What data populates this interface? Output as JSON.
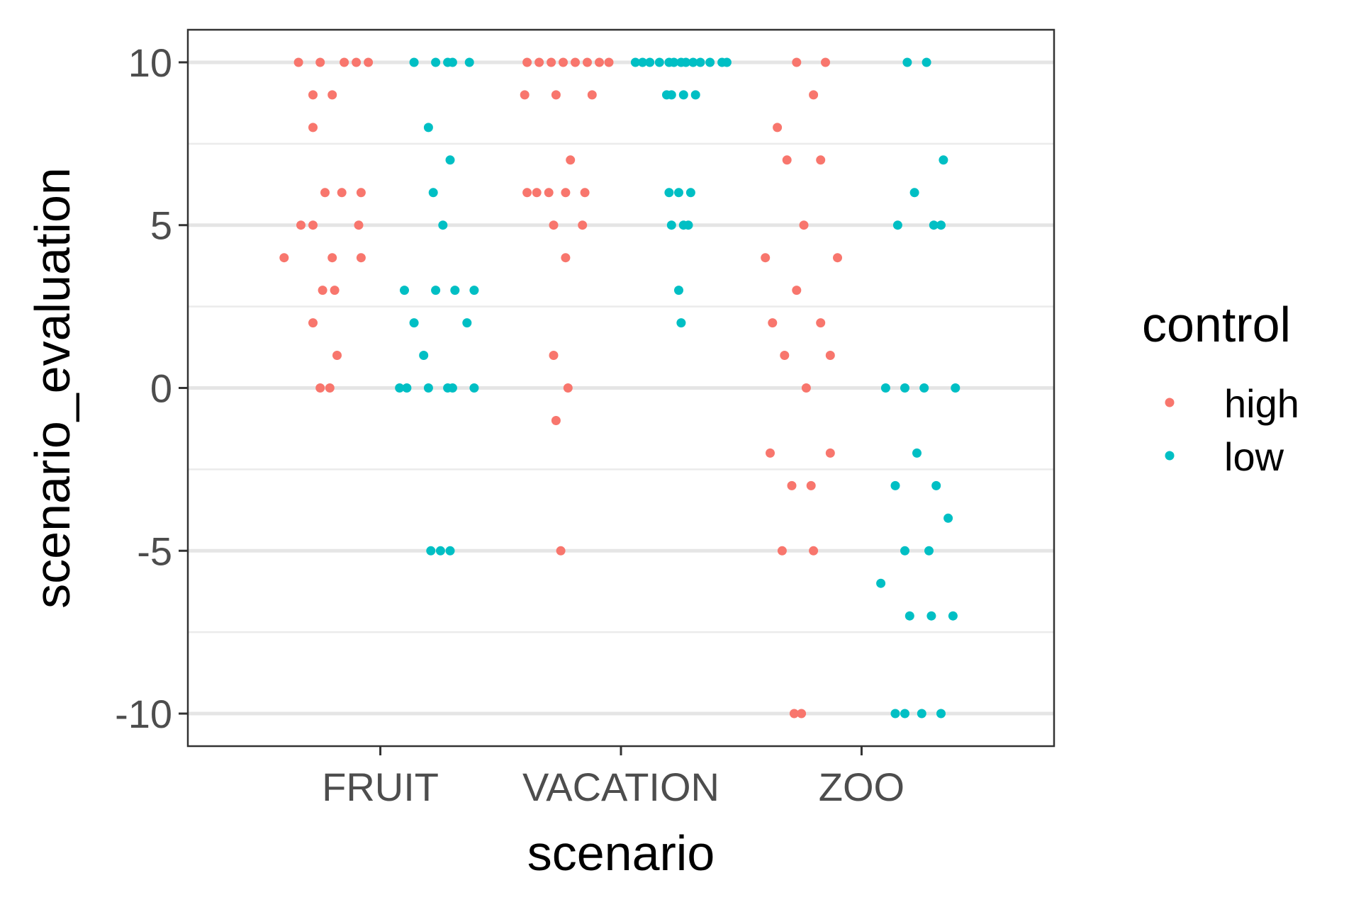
{
  "chart_data": {
    "type": "scatter",
    "xlabel": "scenario",
    "ylabel": "scenario_evaluation",
    "categories": [
      "FRUIT",
      "VACATION",
      "ZOO"
    ],
    "ylim": [
      -11,
      11
    ],
    "y_ticks": [
      "-10",
      "-5",
      "0",
      "5",
      "10"
    ],
    "y_tick_values": [
      -10,
      -5,
      0,
      5,
      10
    ],
    "grid": true,
    "legend": {
      "title": "control",
      "position": "right",
      "entries": [
        {
          "label": "high",
          "color": "#F8766D"
        },
        {
          "label": "low",
          "color": "#00BFC4"
        }
      ]
    },
    "series": [
      {
        "name": "high",
        "color": "#F8766D",
        "points": [
          {
            "x": "FRUIT",
            "jitter": -0.34,
            "y": 10
          },
          {
            "x": "FRUIT",
            "jitter": -0.25,
            "y": 10
          },
          {
            "x": "FRUIT",
            "jitter": -0.15,
            "y": 10
          },
          {
            "x": "FRUIT",
            "jitter": -0.1,
            "y": 10
          },
          {
            "x": "FRUIT",
            "jitter": -0.05,
            "y": 10
          },
          {
            "x": "FRUIT",
            "jitter": -0.28,
            "y": 9
          },
          {
            "x": "FRUIT",
            "jitter": -0.2,
            "y": 9
          },
          {
            "x": "FRUIT",
            "jitter": -0.28,
            "y": 8
          },
          {
            "x": "FRUIT",
            "jitter": -0.23,
            "y": 6
          },
          {
            "x": "FRUIT",
            "jitter": -0.16,
            "y": 6
          },
          {
            "x": "FRUIT",
            "jitter": -0.08,
            "y": 6
          },
          {
            "x": "FRUIT",
            "jitter": -0.33,
            "y": 5
          },
          {
            "x": "FRUIT",
            "jitter": -0.28,
            "y": 5
          },
          {
            "x": "FRUIT",
            "jitter": -0.09,
            "y": 5
          },
          {
            "x": "FRUIT",
            "jitter": -0.4,
            "y": 4
          },
          {
            "x": "FRUIT",
            "jitter": -0.2,
            "y": 4
          },
          {
            "x": "FRUIT",
            "jitter": -0.08,
            "y": 4
          },
          {
            "x": "FRUIT",
            "jitter": -0.24,
            "y": 3
          },
          {
            "x": "FRUIT",
            "jitter": -0.19,
            "y": 3
          },
          {
            "x": "FRUIT",
            "jitter": -0.28,
            "y": 2
          },
          {
            "x": "FRUIT",
            "jitter": -0.18,
            "y": 1
          },
          {
            "x": "FRUIT",
            "jitter": -0.25,
            "y": 0
          },
          {
            "x": "FRUIT",
            "jitter": -0.21,
            "y": 0
          },
          {
            "x": "VACATION",
            "jitter": -0.39,
            "y": 10
          },
          {
            "x": "VACATION",
            "jitter": -0.34,
            "y": 10
          },
          {
            "x": "VACATION",
            "jitter": -0.29,
            "y": 10
          },
          {
            "x": "VACATION",
            "jitter": -0.24,
            "y": 10
          },
          {
            "x": "VACATION",
            "jitter": -0.19,
            "y": 10
          },
          {
            "x": "VACATION",
            "jitter": -0.14,
            "y": 10
          },
          {
            "x": "VACATION",
            "jitter": -0.09,
            "y": 10
          },
          {
            "x": "VACATION",
            "jitter": -0.05,
            "y": 10
          },
          {
            "x": "VACATION",
            "jitter": -0.4,
            "y": 9
          },
          {
            "x": "VACATION",
            "jitter": -0.27,
            "y": 9
          },
          {
            "x": "VACATION",
            "jitter": -0.12,
            "y": 9
          },
          {
            "x": "VACATION",
            "jitter": -0.21,
            "y": 7
          },
          {
            "x": "VACATION",
            "jitter": -0.39,
            "y": 6
          },
          {
            "x": "VACATION",
            "jitter": -0.35,
            "y": 6
          },
          {
            "x": "VACATION",
            "jitter": -0.3,
            "y": 6
          },
          {
            "x": "VACATION",
            "jitter": -0.23,
            "y": 6
          },
          {
            "x": "VACATION",
            "jitter": -0.15,
            "y": 6
          },
          {
            "x": "VACATION",
            "jitter": -0.28,
            "y": 5
          },
          {
            "x": "VACATION",
            "jitter": -0.16,
            "y": 5
          },
          {
            "x": "VACATION",
            "jitter": -0.23,
            "y": 4
          },
          {
            "x": "VACATION",
            "jitter": -0.28,
            "y": 1
          },
          {
            "x": "VACATION",
            "jitter": -0.22,
            "y": 0
          },
          {
            "x": "VACATION",
            "jitter": -0.27,
            "y": -1
          },
          {
            "x": "VACATION",
            "jitter": -0.25,
            "y": -5
          },
          {
            "x": "ZOO",
            "jitter": -0.27,
            "y": 10
          },
          {
            "x": "ZOO",
            "jitter": -0.15,
            "y": 10
          },
          {
            "x": "ZOO",
            "jitter": -0.2,
            "y": 9
          },
          {
            "x": "ZOO",
            "jitter": -0.35,
            "y": 8
          },
          {
            "x": "ZOO",
            "jitter": -0.31,
            "y": 7
          },
          {
            "x": "ZOO",
            "jitter": -0.17,
            "y": 7
          },
          {
            "x": "ZOO",
            "jitter": -0.24,
            "y": 5
          },
          {
            "x": "ZOO",
            "jitter": -0.4,
            "y": 4
          },
          {
            "x": "ZOO",
            "jitter": -0.1,
            "y": 4
          },
          {
            "x": "ZOO",
            "jitter": -0.27,
            "y": 3
          },
          {
            "x": "ZOO",
            "jitter": -0.37,
            "y": 2
          },
          {
            "x": "ZOO",
            "jitter": -0.17,
            "y": 2
          },
          {
            "x": "ZOO",
            "jitter": -0.32,
            "y": 1
          },
          {
            "x": "ZOO",
            "jitter": -0.13,
            "y": 1
          },
          {
            "x": "ZOO",
            "jitter": -0.23,
            "y": 0
          },
          {
            "x": "ZOO",
            "jitter": -0.38,
            "y": -2
          },
          {
            "x": "ZOO",
            "jitter": -0.13,
            "y": -2
          },
          {
            "x": "ZOO",
            "jitter": -0.29,
            "y": -3
          },
          {
            "x": "ZOO",
            "jitter": -0.21,
            "y": -3
          },
          {
            "x": "ZOO",
            "jitter": -0.33,
            "y": -5
          },
          {
            "x": "ZOO",
            "jitter": -0.2,
            "y": -5
          },
          {
            "x": "ZOO",
            "jitter": -0.28,
            "y": -10
          },
          {
            "x": "ZOO",
            "jitter": -0.25,
            "y": -10
          }
        ]
      },
      {
        "name": "low",
        "color": "#00BFC4",
        "points": [
          {
            "x": "FRUIT",
            "jitter": 0.14,
            "y": 10
          },
          {
            "x": "FRUIT",
            "jitter": 0.23,
            "y": 10
          },
          {
            "x": "FRUIT",
            "jitter": 0.28,
            "y": 10
          },
          {
            "x": "FRUIT",
            "jitter": 0.3,
            "y": 10
          },
          {
            "x": "FRUIT",
            "jitter": 0.37,
            "y": 10
          },
          {
            "x": "FRUIT",
            "jitter": 0.2,
            "y": 8
          },
          {
            "x": "FRUIT",
            "jitter": 0.29,
            "y": 7
          },
          {
            "x": "FRUIT",
            "jitter": 0.22,
            "y": 6
          },
          {
            "x": "FRUIT",
            "jitter": 0.26,
            "y": 5
          },
          {
            "x": "FRUIT",
            "jitter": 0.1,
            "y": 3
          },
          {
            "x": "FRUIT",
            "jitter": 0.23,
            "y": 3
          },
          {
            "x": "FRUIT",
            "jitter": 0.31,
            "y": 3
          },
          {
            "x": "FRUIT",
            "jitter": 0.39,
            "y": 3
          },
          {
            "x": "FRUIT",
            "jitter": 0.14,
            "y": 2
          },
          {
            "x": "FRUIT",
            "jitter": 0.36,
            "y": 2
          },
          {
            "x": "FRUIT",
            "jitter": 0.18,
            "y": 1
          },
          {
            "x": "FRUIT",
            "jitter": 0.08,
            "y": 0
          },
          {
            "x": "FRUIT",
            "jitter": 0.11,
            "y": 0
          },
          {
            "x": "FRUIT",
            "jitter": 0.2,
            "y": 0
          },
          {
            "x": "FRUIT",
            "jitter": 0.28,
            "y": 0
          },
          {
            "x": "FRUIT",
            "jitter": 0.3,
            "y": 0
          },
          {
            "x": "FRUIT",
            "jitter": 0.39,
            "y": 0
          },
          {
            "x": "FRUIT",
            "jitter": 0.21,
            "y": -5
          },
          {
            "x": "FRUIT",
            "jitter": 0.25,
            "y": -5
          },
          {
            "x": "FRUIT",
            "jitter": 0.29,
            "y": -5
          },
          {
            "x": "VACATION",
            "jitter": 0.06,
            "y": 10
          },
          {
            "x": "VACATION",
            "jitter": 0.09,
            "y": 10
          },
          {
            "x": "VACATION",
            "jitter": 0.12,
            "y": 10
          },
          {
            "x": "VACATION",
            "jitter": 0.16,
            "y": 10
          },
          {
            "x": "VACATION",
            "jitter": 0.2,
            "y": 10
          },
          {
            "x": "VACATION",
            "jitter": 0.22,
            "y": 10
          },
          {
            "x": "VACATION",
            "jitter": 0.25,
            "y": 10
          },
          {
            "x": "VACATION",
            "jitter": 0.27,
            "y": 10
          },
          {
            "x": "VACATION",
            "jitter": 0.3,
            "y": 10
          },
          {
            "x": "VACATION",
            "jitter": 0.33,
            "y": 10
          },
          {
            "x": "VACATION",
            "jitter": 0.37,
            "y": 10
          },
          {
            "x": "VACATION",
            "jitter": 0.42,
            "y": 10
          },
          {
            "x": "VACATION",
            "jitter": 0.44,
            "y": 10
          },
          {
            "x": "VACATION",
            "jitter": 0.19,
            "y": 9
          },
          {
            "x": "VACATION",
            "jitter": 0.21,
            "y": 9
          },
          {
            "x": "VACATION",
            "jitter": 0.26,
            "y": 9
          },
          {
            "x": "VACATION",
            "jitter": 0.31,
            "y": 9
          },
          {
            "x": "VACATION",
            "jitter": 0.2,
            "y": 6
          },
          {
            "x": "VACATION",
            "jitter": 0.24,
            "y": 6
          },
          {
            "x": "VACATION",
            "jitter": 0.29,
            "y": 6
          },
          {
            "x": "VACATION",
            "jitter": 0.21,
            "y": 5
          },
          {
            "x": "VACATION",
            "jitter": 0.26,
            "y": 5
          },
          {
            "x": "VACATION",
            "jitter": 0.28,
            "y": 5
          },
          {
            "x": "VACATION",
            "jitter": 0.24,
            "y": 3
          },
          {
            "x": "VACATION",
            "jitter": 0.25,
            "y": 2
          },
          {
            "x": "ZOO",
            "jitter": 0.19,
            "y": 10
          },
          {
            "x": "ZOO",
            "jitter": 0.27,
            "y": 10
          },
          {
            "x": "ZOO",
            "jitter": 0.34,
            "y": 7
          },
          {
            "x": "ZOO",
            "jitter": 0.22,
            "y": 6
          },
          {
            "x": "ZOO",
            "jitter": 0.15,
            "y": 5
          },
          {
            "x": "ZOO",
            "jitter": 0.3,
            "y": 5
          },
          {
            "x": "ZOO",
            "jitter": 0.33,
            "y": 5
          },
          {
            "x": "ZOO",
            "jitter": 0.1,
            "y": 0
          },
          {
            "x": "ZOO",
            "jitter": 0.18,
            "y": 0
          },
          {
            "x": "ZOO",
            "jitter": 0.26,
            "y": 0
          },
          {
            "x": "ZOO",
            "jitter": 0.39,
            "y": 0
          },
          {
            "x": "ZOO",
            "jitter": 0.23,
            "y": -2
          },
          {
            "x": "ZOO",
            "jitter": 0.14,
            "y": -3
          },
          {
            "x": "ZOO",
            "jitter": 0.31,
            "y": -3
          },
          {
            "x": "ZOO",
            "jitter": 0.36,
            "y": -4
          },
          {
            "x": "ZOO",
            "jitter": 0.18,
            "y": -5
          },
          {
            "x": "ZOO",
            "jitter": 0.28,
            "y": -5
          },
          {
            "x": "ZOO",
            "jitter": 0.08,
            "y": -6
          },
          {
            "x": "ZOO",
            "jitter": 0.2,
            "y": -7
          },
          {
            "x": "ZOO",
            "jitter": 0.29,
            "y": -7
          },
          {
            "x": "ZOO",
            "jitter": 0.38,
            "y": -7
          },
          {
            "x": "ZOO",
            "jitter": 0.14,
            "y": -10
          },
          {
            "x": "ZOO",
            "jitter": 0.18,
            "y": -10
          },
          {
            "x": "ZOO",
            "jitter": 0.25,
            "y": -10
          },
          {
            "x": "ZOO",
            "jitter": 0.33,
            "y": -10
          }
        ]
      }
    ]
  }
}
